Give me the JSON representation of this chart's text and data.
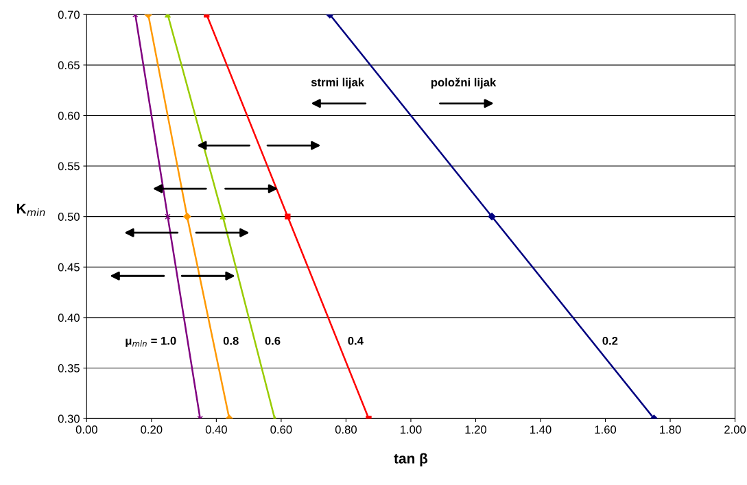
{
  "chart_data": {
    "type": "line",
    "xlabel": "tan β",
    "ylabel": "K$_{min}$",
    "xlim": [
      0,
      2
    ],
    "xticks": [
      {
        "value": 0,
        "label": "0.00"
      },
      {
        "value": 0.2,
        "label": "0.20"
      },
      {
        "value": 0.4,
        "label": "0.40"
      },
      {
        "value": 0.6,
        "label": "0.60"
      },
      {
        "value": 0.8,
        "label": "0.80"
      },
      {
        "value": 1,
        "label": "1.00"
      },
      {
        "value": 1.2,
        "label": "1.20"
      },
      {
        "value": 1.4,
        "label": "1.40"
      },
      {
        "value": 1.6,
        "label": "1.60"
      },
      {
        "value": 1.8,
        "label": "1.80"
      },
      {
        "value": 2,
        "label": "2.00"
      }
    ],
    "ylim": [
      0.3,
      0.7
    ],
    "yticks": [
      {
        "value": 0.3,
        "label": "0.30"
      },
      {
        "value": 0.35,
        "label": "0.35"
      },
      {
        "value": 0.4,
        "label": "0.40"
      },
      {
        "value": 0.45,
        "label": "0.45"
      },
      {
        "value": 0.5,
        "label": "0.50"
      },
      {
        "value": 0.55,
        "label": "0.55"
      },
      {
        "value": 0.6,
        "label": "0.60"
      },
      {
        "value": 0.65,
        "label": "0.65"
      },
      {
        "value": 0.7,
        "label": "0.70"
      }
    ],
    "grid": "y",
    "legend": false,
    "line_style": "solid",
    "annotations": [
      "strmi lijak",
      "položni lijak"
    ],
    "series": [
      {
        "name": "0.2",
        "color": "#000080",
        "marker": "diamond",
        "x": [
          0.75,
          1.25,
          1.75
        ],
        "values": [
          0.7,
          0.5,
          0.3
        ]
      },
      {
        "name": "0.4",
        "color": "#ff0000",
        "marker": "square",
        "x": [
          0.37,
          0.62,
          0.87
        ],
        "values": [
          0.7,
          0.5,
          0.3
        ]
      },
      {
        "name": "0.6",
        "color": "#99cc00",
        "marker": "triangle",
        "x": [
          0.25,
          0.42,
          0.58
        ],
        "values": [
          0.7,
          0.5,
          0.3
        ]
      },
      {
        "name": "0.8",
        "color": "#ff9900",
        "marker": "diamond",
        "x": [
          0.19,
          0.31,
          0.44
        ],
        "values": [
          0.7,
          0.5,
          0.3
        ]
      },
      {
        "name": "μ$_{min}$ = 1.0",
        "color": "#800080",
        "marker": "cross",
        "x": [
          0.15,
          0.25,
          0.35
        ],
        "values": [
          0.7,
          0.5,
          0.3
        ]
      }
    ]
  }
}
